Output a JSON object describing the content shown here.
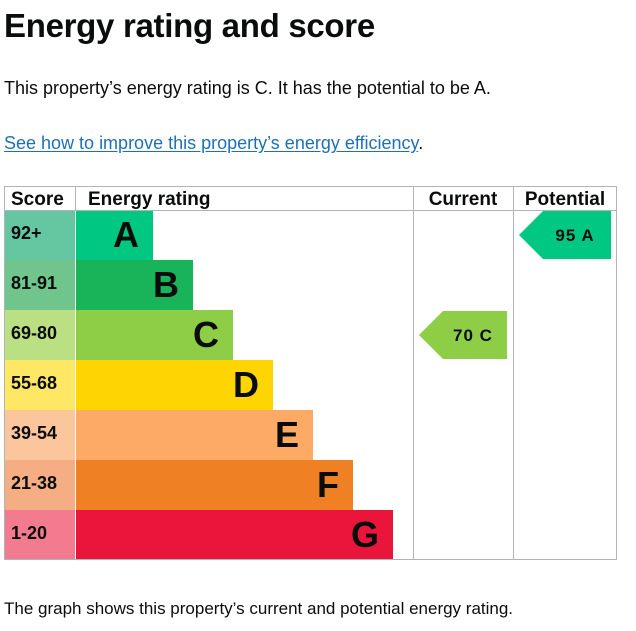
{
  "title": "Energy rating and score",
  "intro": "This property’s energy rating is C. It has the potential to be A.",
  "link": {
    "text": "See how to improve this property’s energy efficiency",
    "suffix": "."
  },
  "footer": "The graph shows this property’s current and potential energy rating.",
  "chart_data": {
    "type": "table",
    "headers": {
      "score": "Score",
      "rating": "Energy rating",
      "current": "Current",
      "potential": "Potential"
    },
    "bands": [
      {
        "score": "92+",
        "letter": "A",
        "score_color": "#65c6a2",
        "color": "#00c781"
      },
      {
        "score": "81-91",
        "letter": "B",
        "score_color": "#6fc58c",
        "color": "#19b459"
      },
      {
        "score": "69-80",
        "letter": "C",
        "score_color": "#bbe084",
        "color": "#8dce46"
      },
      {
        "score": "55-68",
        "letter": "D",
        "score_color": "#ffe766",
        "color": "#ffd500"
      },
      {
        "score": "39-54",
        "letter": "E",
        "score_color": "#fcc69c",
        "color": "#fcaa65"
      },
      {
        "score": "21-38",
        "letter": "F",
        "score_color": "#f5ae83",
        "color": "#ef8023"
      },
      {
        "score": "1-20",
        "letter": "G",
        "score_color": "#f27b8f",
        "color": "#e9153b"
      }
    ],
    "current": {
      "score": 70,
      "band": "C",
      "label": "70 C",
      "color": "#8dce46"
    },
    "potential": {
      "score": 95,
      "band": "A",
      "label": "95 A",
      "color": "#00c781"
    }
  }
}
